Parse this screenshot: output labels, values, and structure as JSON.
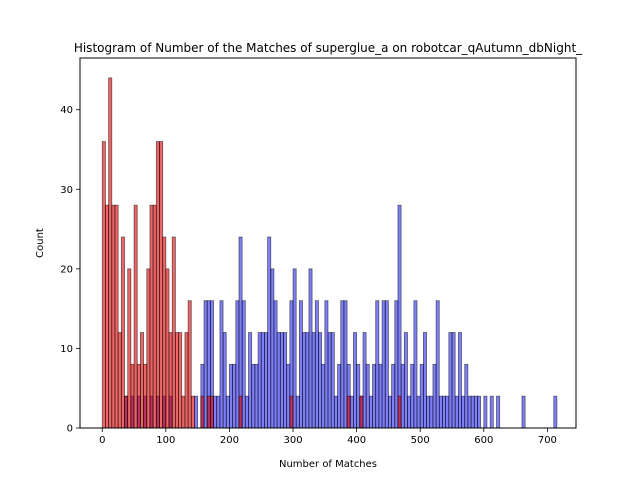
{
  "chart_data": {
    "type": "bar",
    "title": "Histogram of Number of the Matches of superglue_a on robotcar_qAutumn_dbNight_",
    "xlabel": "Number of Matches",
    "ylabel": "Count",
    "xlim": [
      -35,
      745
    ],
    "ylim": [
      0,
      46.5
    ],
    "xticks": [
      0,
      100,
      200,
      300,
      400,
      500,
      600,
      700
    ],
    "yticks": [
      0,
      10,
      20,
      30,
      40
    ],
    "bin_width": 5,
    "series": [
      {
        "color": "#0000ee",
        "alpha": 0.5,
        "bins": [
          [
            35,
            4
          ],
          [
            45,
            4
          ],
          [
            55,
            4
          ],
          [
            65,
            4
          ],
          [
            75,
            4
          ],
          [
            85,
            4
          ],
          [
            95,
            4
          ],
          [
            105,
            4
          ],
          [
            145,
            4
          ],
          [
            155,
            8
          ],
          [
            160,
            16
          ],
          [
            165,
            16
          ],
          [
            170,
            16
          ],
          [
            175,
            4
          ],
          [
            180,
            4
          ],
          [
            185,
            16
          ],
          [
            190,
            12
          ],
          [
            195,
            4
          ],
          [
            200,
            8
          ],
          [
            205,
            8
          ],
          [
            210,
            16
          ],
          [
            215,
            24
          ],
          [
            220,
            16
          ],
          [
            225,
            4
          ],
          [
            230,
            12
          ],
          [
            235,
            8
          ],
          [
            240,
            8
          ],
          [
            245,
            12
          ],
          [
            250,
            12
          ],
          [
            255,
            12
          ],
          [
            260,
            24
          ],
          [
            265,
            20
          ],
          [
            270,
            16
          ],
          [
            275,
            12
          ],
          [
            280,
            12
          ],
          [
            285,
            12
          ],
          [
            290,
            8
          ],
          [
            295,
            16
          ],
          [
            300,
            20
          ],
          [
            305,
            4
          ],
          [
            310,
            16
          ],
          [
            315,
            12
          ],
          [
            320,
            12
          ],
          [
            325,
            20
          ],
          [
            330,
            12
          ],
          [
            335,
            16
          ],
          [
            340,
            12
          ],
          [
            345,
            8
          ],
          [
            350,
            16
          ],
          [
            355,
            12
          ],
          [
            360,
            12
          ],
          [
            365,
            4
          ],
          [
            370,
            8
          ],
          [
            375,
            16
          ],
          [
            380,
            16
          ],
          [
            385,
            8
          ],
          [
            390,
            4
          ],
          [
            395,
            12
          ],
          [
            400,
            8
          ],
          [
            405,
            4
          ],
          [
            410,
            12
          ],
          [
            415,
            8
          ],
          [
            420,
            4
          ],
          [
            425,
            8
          ],
          [
            430,
            16
          ],
          [
            435,
            8
          ],
          [
            440,
            16
          ],
          [
            445,
            16
          ],
          [
            450,
            4
          ],
          [
            455,
            8
          ],
          [
            460,
            16
          ],
          [
            465,
            28
          ],
          [
            470,
            8
          ],
          [
            475,
            12
          ],
          [
            480,
            4
          ],
          [
            485,
            8
          ],
          [
            490,
            16
          ],
          [
            495,
            4
          ],
          [
            500,
            8
          ],
          [
            505,
            12
          ],
          [
            510,
            4
          ],
          [
            515,
            4
          ],
          [
            520,
            8
          ],
          [
            525,
            16
          ],
          [
            530,
            4
          ],
          [
            535,
            4
          ],
          [
            540,
            4
          ],
          [
            545,
            12
          ],
          [
            550,
            12
          ],
          [
            555,
            4
          ],
          [
            560,
            12
          ],
          [
            565,
            4
          ],
          [
            570,
            8
          ],
          [
            575,
            4
          ],
          [
            580,
            4
          ],
          [
            585,
            4
          ],
          [
            590,
            4
          ],
          [
            600,
            4
          ],
          [
            610,
            4
          ],
          [
            620,
            4
          ],
          [
            660,
            4
          ],
          [
            710,
            4
          ]
        ]
      },
      {
        "color": "#dd0000",
        "alpha": 0.6,
        "bins": [
          [
            0,
            36
          ],
          [
            5,
            28
          ],
          [
            10,
            44
          ],
          [
            15,
            28
          ],
          [
            20,
            28
          ],
          [
            25,
            12
          ],
          [
            30,
            24
          ],
          [
            35,
            4
          ],
          [
            40,
            20
          ],
          [
            45,
            8
          ],
          [
            50,
            28
          ],
          [
            55,
            8
          ],
          [
            60,
            12
          ],
          [
            65,
            8
          ],
          [
            70,
            20
          ],
          [
            75,
            28
          ],
          [
            80,
            28
          ],
          [
            85,
            36
          ],
          [
            90,
            36
          ],
          [
            95,
            24
          ],
          [
            100,
            20
          ],
          [
            105,
            12
          ],
          [
            110,
            24
          ],
          [
            115,
            12
          ],
          [
            120,
            12
          ],
          [
            125,
            4
          ],
          [
            130,
            12
          ],
          [
            135,
            16
          ],
          [
            140,
            4
          ],
          [
            155,
            4
          ],
          [
            165,
            4
          ],
          [
            170,
            4
          ],
          [
            215,
            4
          ],
          [
            295,
            4
          ],
          [
            385,
            4
          ],
          [
            405,
            4
          ],
          [
            465,
            4
          ]
        ]
      }
    ]
  }
}
